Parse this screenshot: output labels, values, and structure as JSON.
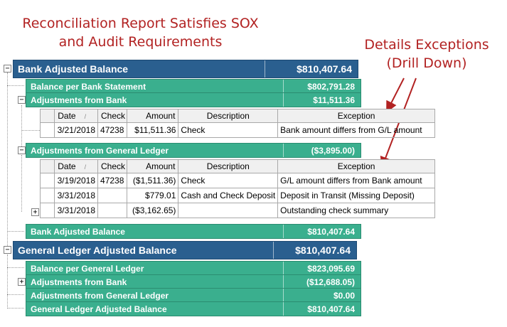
{
  "annotation_left": [
    "Reconciliation Report Satisfies SOX",
    "and Audit Requirements"
  ],
  "annotation_right": [
    "Details Exceptions",
    "(Drill Down)"
  ],
  "bank_adjusted": {
    "title": "Bank Adjusted Balance",
    "value": "$810,407.64",
    "rows": [
      {
        "label": "Balance per Bank Statement",
        "value": "$802,791.28"
      },
      {
        "label": "Adjustments from Bank",
        "value": "$11,511.36"
      },
      {
        "label": "Adjustments from General Ledger",
        "value": "($3,895.00)"
      },
      {
        "label": "Bank Adjusted Balance",
        "value": "$810,407.64"
      }
    ]
  },
  "grid_headers": [
    "Date",
    "Check",
    "Amount",
    "Description",
    "Exception"
  ],
  "bank_adjustments_grid": [
    {
      "date": "3/21/2018",
      "check": "47238",
      "amount": "$11,511.36",
      "description": "Check",
      "exception": "Bank amount differs from G/L amount"
    }
  ],
  "gl_adjustments_grid": [
    {
      "date": "3/19/2018",
      "check": "47238",
      "amount": "($1,511.36)",
      "description": "Check",
      "exception": "G/L amount differs from Bank amount"
    },
    {
      "date": "3/31/2018",
      "check": "",
      "amount": "$779.01",
      "description": "Cash and Check Deposit",
      "exception": "Deposit in Transit (Missing Deposit)"
    },
    {
      "date": "3/31/2018",
      "check": "",
      "amount": "($3,162.65)",
      "description": "",
      "exception": "Outstanding check summary"
    }
  ],
  "gl_adjusted": {
    "title": "General Ledger Adjusted Balance",
    "value": "$810,407.64",
    "rows": [
      {
        "label": "Balance per General Ledger",
        "value": "$823,095.69"
      },
      {
        "label": "Adjustments from Bank",
        "value": "($12,688.05)"
      },
      {
        "label": "Adjustments from General Ledger",
        "value": "$0.00"
      },
      {
        "label": "General Ledger Adjusted Balance",
        "value": "$810,407.64"
      }
    ]
  },
  "toggles": {
    "expanded": "−",
    "collapsed": "+"
  },
  "sort_icon": "/",
  "colors": {
    "dark_band": "#2a5f8f",
    "teal_band": "#3aaf8e",
    "annotation": "#b22222"
  }
}
